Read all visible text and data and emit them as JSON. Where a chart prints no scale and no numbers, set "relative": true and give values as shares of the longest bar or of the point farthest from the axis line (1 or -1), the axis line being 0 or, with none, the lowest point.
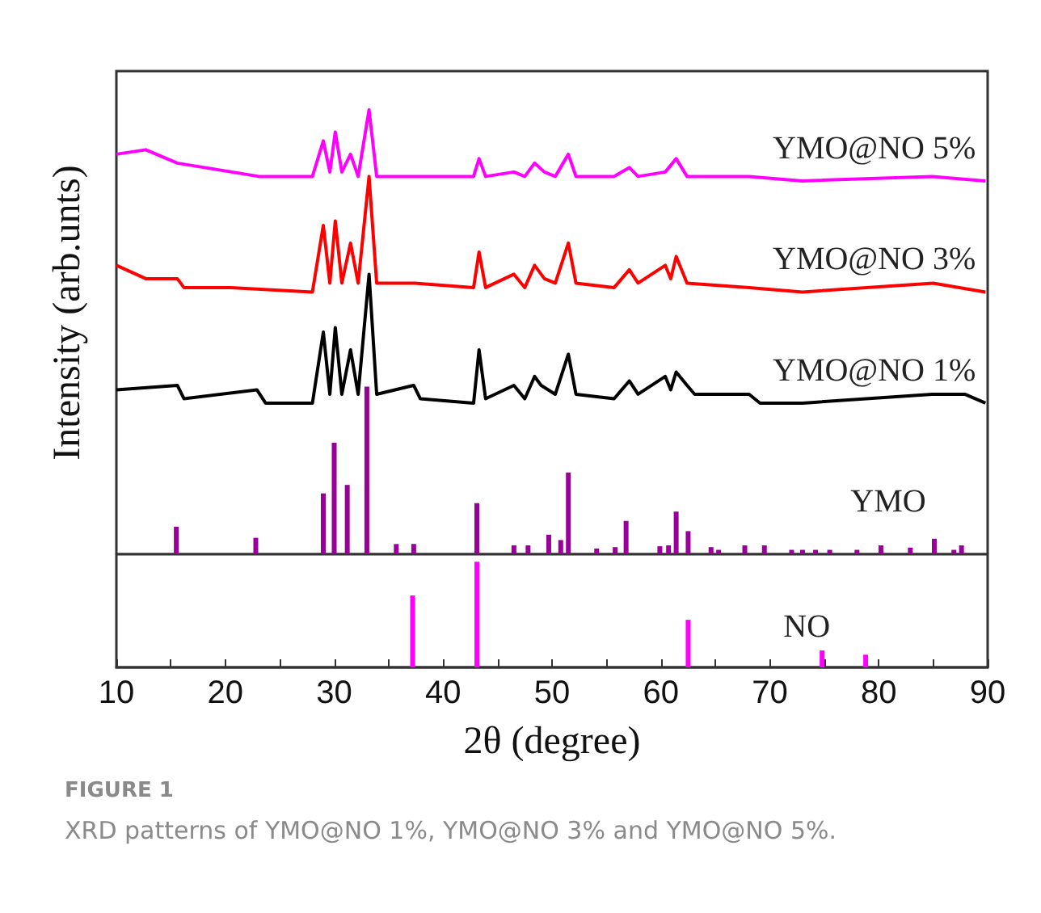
{
  "chart_data": [
    {
      "type": "line",
      "ylabel": "Intensity (arb.unts)",
      "xlim": [
        10,
        90
      ],
      "tick_labels": false,
      "relative": true,
      "series": [
        {
          "name": "YMO@NO 5%",
          "color": "#ff00ff",
          "x": [
            10,
            12.7,
            15.6,
            18.1,
            23.1,
            28.0,
            29.0,
            29.6,
            30.1,
            30.7,
            31.5,
            32.2,
            33.2,
            33.9,
            35.9,
            37.9,
            42.8,
            43.3,
            43.9,
            46.5,
            47.5,
            48.4,
            49.3,
            50.3,
            51.5,
            52.2,
            55.7,
            57.1,
            57.9,
            60.4,
            61.4,
            62.4,
            68.1,
            73.0,
            84.9,
            89.8
          ],
          "values": [
            0.9,
            0.91,
            0.88,
            0.87,
            0.85,
            0.85,
            0.93,
            0.86,
            0.95,
            0.86,
            0.9,
            0.85,
            1.0,
            0.85,
            0.85,
            0.85,
            0.85,
            0.89,
            0.85,
            0.86,
            0.85,
            0.88,
            0.86,
            0.85,
            0.9,
            0.85,
            0.85,
            0.87,
            0.85,
            0.86,
            0.89,
            0.85,
            0.85,
            0.84,
            0.85,
            0.84
          ]
        },
        {
          "name": "YMO@NO 3%",
          "color": "#ff0000",
          "x": [
            10,
            12.7,
            15.6,
            16.2,
            20.5,
            28.0,
            29.0,
            29.6,
            30.1,
            30.7,
            31.5,
            32.2,
            33.2,
            33.9,
            37.4,
            42.8,
            43.3,
            43.9,
            46.5,
            47.5,
            48.4,
            49.3,
            50.3,
            51.5,
            52.2,
            55.7,
            57.1,
            57.9,
            60.4,
            60.9,
            61.4,
            62.4,
            68.1,
            73.0,
            85.0,
            89.8
          ],
          "values": [
            0.65,
            0.62,
            0.62,
            0.6,
            0.6,
            0.59,
            0.74,
            0.61,
            0.75,
            0.61,
            0.7,
            0.61,
            0.85,
            0.61,
            0.61,
            0.6,
            0.68,
            0.6,
            0.63,
            0.6,
            0.65,
            0.62,
            0.61,
            0.7,
            0.61,
            0.6,
            0.64,
            0.61,
            0.65,
            0.62,
            0.67,
            0.61,
            0.6,
            0.59,
            0.61,
            0.59
          ]
        },
        {
          "name": "YMO@NO 1%",
          "color": "#000000",
          "x": [
            10,
            15.6,
            16.2,
            22.9,
            23.7,
            28.0,
            29.0,
            29.6,
            30.1,
            30.7,
            31.5,
            32.2,
            33.2,
            33.9,
            37.3,
            37.9,
            42.8,
            43.3,
            43.9,
            46.5,
            47.5,
            48.4,
            49.0,
            50.3,
            51.5,
            52.2,
            55.7,
            57.1,
            57.9,
            60.4,
            60.9,
            61.4,
            62.4,
            63.1,
            68.1,
            69.1,
            73.0,
            84.9,
            87.9,
            89.8
          ],
          "values": [
            0.37,
            0.38,
            0.35,
            0.37,
            0.34,
            0.34,
            0.5,
            0.36,
            0.51,
            0.36,
            0.46,
            0.36,
            0.63,
            0.36,
            0.38,
            0.35,
            0.34,
            0.46,
            0.35,
            0.38,
            0.35,
            0.4,
            0.38,
            0.36,
            0.45,
            0.36,
            0.35,
            0.39,
            0.36,
            0.4,
            0.37,
            0.41,
            0.38,
            0.36,
            0.36,
            0.34,
            0.34,
            0.36,
            0.36,
            0.34
          ]
        },
        {
          "type": "bar",
          "name": "YMO",
          "color": "#990099",
          "x": [
            15.5,
            22.8,
            29.0,
            30.0,
            31.2,
            33.0,
            35.7,
            37.3,
            43.1,
            46.5,
            47.8,
            49.7,
            50.8,
            51.5,
            54.1,
            55.8,
            56.8,
            59.9,
            60.7,
            61.4,
            62.5,
            64.6,
            65.3,
            67.7,
            69.5,
            72.0,
            73.0,
            74.2,
            75.5,
            78.0,
            80.2,
            82.9,
            85.1,
            86.9,
            87.6
          ],
          "values": [
            0.062,
            0.037,
            0.137,
            0.251,
            0.156,
            0.377,
            0.023,
            0.023,
            0.115,
            0.02,
            0.02,
            0.044,
            0.032,
            0.184,
            0.013,
            0.016,
            0.075,
            0.018,
            0.02,
            0.096,
            0.052,
            0.016,
            0.01,
            0.02,
            0.02,
            0.01,
            0.01,
            0.01,
            0.01,
            0.01,
            0.02,
            0.015,
            0.035,
            0.01,
            0.02
          ]
        }
      ]
    },
    {
      "type": "bar",
      "xlabel": "2θ (degree)",
      "xlim": [
        10,
        90
      ],
      "tick_labels": "x",
      "relative": true,
      "xticks": [
        10,
        {
          "value": 15,
          "label": null
        },
        20,
        {
          "value": 25,
          "label": null
        },
        30,
        {
          "value": 35,
          "label": null
        },
        40,
        {
          "value": 45,
          "label": null
        },
        50,
        {
          "value": 55,
          "label": null
        },
        60,
        {
          "value": 65,
          "label": null
        },
        70,
        {
          "value": 75,
          "label": null
        },
        80,
        {
          "value": 85,
          "label": null
        },
        90
      ],
      "series": [
        {
          "name": "NO",
          "color": "#ff00ff",
          "x": [
            37.2,
            43.1,
            62.5,
            74.8,
            78.8
          ],
          "values": [
            0.68,
            1.0,
            0.45,
            0.16,
            0.12
          ]
        }
      ],
      "annotations": [
        "FIGURE 1",
        "XRD patterns of YMO@NO 1%, YMO@NO 3% and YMO@NO 5%."
      ]
    }
  ]
}
